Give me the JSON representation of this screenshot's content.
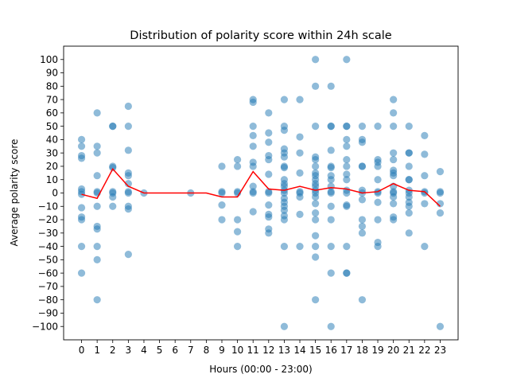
{
  "chart_data": {
    "type": "scatter",
    "title": "Distribution of polarity score within 24h scale",
    "xlabel": "Hours (00:00 - 23:00)",
    "ylabel": "Average polarity score",
    "xlim": [
      -1.15,
      24.15
    ],
    "ylim": [
      -110,
      110
    ],
    "xticks": [
      0,
      1,
      2,
      3,
      4,
      5,
      6,
      7,
      8,
      9,
      10,
      11,
      12,
      13,
      14,
      15,
      16,
      17,
      18,
      19,
      20,
      21,
      22,
      23
    ],
    "yticks": [
      100,
      90,
      80,
      70,
      60,
      50,
      40,
      30,
      20,
      10,
      0,
      -10,
      -20,
      -30,
      -40,
      -50,
      -60,
      -70,
      -80,
      -90,
      -100
    ],
    "grid": false,
    "legend": "none",
    "colors": {
      "points": "#1f77b4",
      "line": "#ff0000"
    },
    "series": [
      {
        "type": "scatter",
        "points": [
          [
            0,
            40
          ],
          [
            0,
            35
          ],
          [
            0,
            28
          ],
          [
            0,
            26
          ],
          [
            0,
            3
          ],
          [
            0,
            1
          ],
          [
            0,
            -1
          ],
          [
            0,
            -11
          ],
          [
            0,
            -18
          ],
          [
            0,
            -20
          ],
          [
            0,
            -40
          ],
          [
            0,
            -60
          ],
          [
            1,
            60
          ],
          [
            1,
            35
          ],
          [
            1,
            30
          ],
          [
            1,
            13
          ],
          [
            1,
            1
          ],
          [
            1,
            0
          ],
          [
            1,
            -10
          ],
          [
            1,
            -25
          ],
          [
            1,
            -27
          ],
          [
            1,
            -40
          ],
          [
            1,
            -50
          ],
          [
            1,
            -80
          ],
          [
            2,
            50
          ],
          [
            2,
            50
          ],
          [
            2,
            20
          ],
          [
            2,
            19
          ],
          [
            2,
            1
          ],
          [
            2,
            0
          ],
          [
            2,
            -3
          ],
          [
            2,
            -10
          ],
          [
            3,
            65
          ],
          [
            3,
            50
          ],
          [
            3,
            32
          ],
          [
            3,
            15
          ],
          [
            3,
            13
          ],
          [
            3,
            7
          ],
          [
            3,
            1
          ],
          [
            3,
            0
          ],
          [
            3,
            -10
          ],
          [
            3,
            -12
          ],
          [
            3,
            -46
          ],
          [
            4,
            0
          ],
          [
            7,
            0
          ],
          [
            9,
            20
          ],
          [
            9,
            1
          ],
          [
            9,
            0
          ],
          [
            9,
            -9
          ],
          [
            9,
            -20
          ],
          [
            10,
            25
          ],
          [
            10,
            20
          ],
          [
            10,
            1
          ],
          [
            10,
            0
          ],
          [
            10,
            -20
          ],
          [
            10,
            -29
          ],
          [
            10,
            -40
          ],
          [
            11,
            70
          ],
          [
            11,
            68
          ],
          [
            11,
            50
          ],
          [
            11,
            43
          ],
          [
            11,
            35
          ],
          [
            11,
            23
          ],
          [
            11,
            20
          ],
          [
            11,
            5
          ],
          [
            11,
            1
          ],
          [
            11,
            0
          ],
          [
            11,
            -14
          ],
          [
            12,
            60
          ],
          [
            12,
            45
          ],
          [
            12,
            38
          ],
          [
            12,
            28
          ],
          [
            12,
            25
          ],
          [
            12,
            14
          ],
          [
            12,
            1
          ],
          [
            12,
            0
          ],
          [
            12,
            -9
          ],
          [
            12,
            -16
          ],
          [
            12,
            -18
          ],
          [
            12,
            -27
          ],
          [
            12,
            -30
          ],
          [
            13,
            70
          ],
          [
            13,
            50
          ],
          [
            13,
            47
          ],
          [
            13,
            33
          ],
          [
            13,
            30
          ],
          [
            13,
            27
          ],
          [
            13,
            20
          ],
          [
            13,
            19
          ],
          [
            13,
            10
          ],
          [
            13,
            7
          ],
          [
            13,
            5
          ],
          [
            13,
            2
          ],
          [
            13,
            0
          ],
          [
            13,
            -4
          ],
          [
            13,
            -7
          ],
          [
            13,
            -10
          ],
          [
            13,
            -13
          ],
          [
            13,
            -17
          ],
          [
            13,
            -20
          ],
          [
            13,
            -40
          ],
          [
            13,
            -100
          ],
          [
            14,
            70
          ],
          [
            14,
            42
          ],
          [
            14,
            30
          ],
          [
            14,
            15
          ],
          [
            14,
            1
          ],
          [
            14,
            0
          ],
          [
            14,
            -3
          ],
          [
            14,
            -16
          ],
          [
            14,
            -40
          ],
          [
            15,
            100
          ],
          [
            15,
            80
          ],
          [
            15,
            50
          ],
          [
            15,
            27
          ],
          [
            15,
            25
          ],
          [
            15,
            20
          ],
          [
            15,
            15
          ],
          [
            15,
            13
          ],
          [
            15,
            10
          ],
          [
            15,
            7
          ],
          [
            15,
            5
          ],
          [
            15,
            2
          ],
          [
            15,
            0
          ],
          [
            15,
            -3
          ],
          [
            15,
            -8
          ],
          [
            15,
            -15
          ],
          [
            15,
            -20
          ],
          [
            15,
            -32
          ],
          [
            15,
            -40
          ],
          [
            15,
            -48
          ],
          [
            15,
            -80
          ],
          [
            16,
            80
          ],
          [
            16,
            50
          ],
          [
            16,
            50
          ],
          [
            16,
            32
          ],
          [
            16,
            20
          ],
          [
            16,
            19
          ],
          [
            16,
            13
          ],
          [
            16,
            10
          ],
          [
            16,
            5
          ],
          [
            16,
            1
          ],
          [
            16,
            0
          ],
          [
            16,
            -10
          ],
          [
            16,
            -20
          ],
          [
            16,
            -40
          ],
          [
            16,
            -60
          ],
          [
            16,
            -100
          ],
          [
            17,
            100
          ],
          [
            17,
            50
          ],
          [
            17,
            50
          ],
          [
            17,
            40
          ],
          [
            17,
            35
          ],
          [
            17,
            25
          ],
          [
            17,
            20
          ],
          [
            17,
            14
          ],
          [
            17,
            10
          ],
          [
            17,
            2
          ],
          [
            17,
            0
          ],
          [
            17,
            -9
          ],
          [
            17,
            -10
          ],
          [
            17,
            -40
          ],
          [
            17,
            -60
          ],
          [
            17,
            -60
          ],
          [
            18,
            50
          ],
          [
            18,
            40
          ],
          [
            18,
            38
          ],
          [
            18,
            20
          ],
          [
            18,
            20
          ],
          [
            18,
            2
          ],
          [
            18,
            0
          ],
          [
            18,
            -5
          ],
          [
            18,
            -20
          ],
          [
            18,
            -25
          ],
          [
            18,
            -30
          ],
          [
            18,
            -80
          ],
          [
            19,
            50
          ],
          [
            19,
            25
          ],
          [
            19,
            23
          ],
          [
            19,
            20
          ],
          [
            19,
            10
          ],
          [
            19,
            1
          ],
          [
            19,
            0
          ],
          [
            19,
            -7
          ],
          [
            19,
            -20
          ],
          [
            19,
            -37
          ],
          [
            19,
            -40
          ],
          [
            20,
            70
          ],
          [
            20,
            60
          ],
          [
            20,
            50
          ],
          [
            20,
            30
          ],
          [
            20,
            25
          ],
          [
            20,
            17
          ],
          [
            20,
            15
          ],
          [
            20,
            13
          ],
          [
            20,
            5
          ],
          [
            20,
            1
          ],
          [
            20,
            0
          ],
          [
            20,
            -3
          ],
          [
            20,
            -8
          ],
          [
            20,
            -18
          ],
          [
            20,
            -20
          ],
          [
            21,
            50
          ],
          [
            21,
            30
          ],
          [
            21,
            30
          ],
          [
            21,
            20
          ],
          [
            21,
            10
          ],
          [
            21,
            10
          ],
          [
            21,
            2
          ],
          [
            21,
            0
          ],
          [
            21,
            -3
          ],
          [
            21,
            -7
          ],
          [
            21,
            -10
          ],
          [
            21,
            -15
          ],
          [
            21,
            -30
          ],
          [
            22,
            43
          ],
          [
            22,
            29
          ],
          [
            22,
            13
          ],
          [
            22,
            1
          ],
          [
            22,
            0
          ],
          [
            22,
            -8
          ],
          [
            22,
            -40
          ],
          [
            23,
            16
          ],
          [
            23,
            1
          ],
          [
            23,
            0
          ],
          [
            23,
            -8
          ],
          [
            23,
            -15
          ],
          [
            23,
            -100
          ]
        ]
      },
      {
        "type": "line",
        "x": [
          0,
          1,
          2,
          3,
          4,
          5,
          6,
          7,
          8,
          9,
          10,
          11,
          12,
          13,
          14,
          15,
          16,
          17,
          18,
          19,
          20,
          21,
          22,
          23
        ],
        "y": [
          -1,
          -4,
          18,
          5,
          0,
          0,
          0,
          0,
          0,
          -3,
          -3,
          16,
          3,
          2,
          5,
          2,
          4,
          3,
          0,
          1,
          7,
          2,
          1,
          -10
        ]
      }
    ]
  }
}
